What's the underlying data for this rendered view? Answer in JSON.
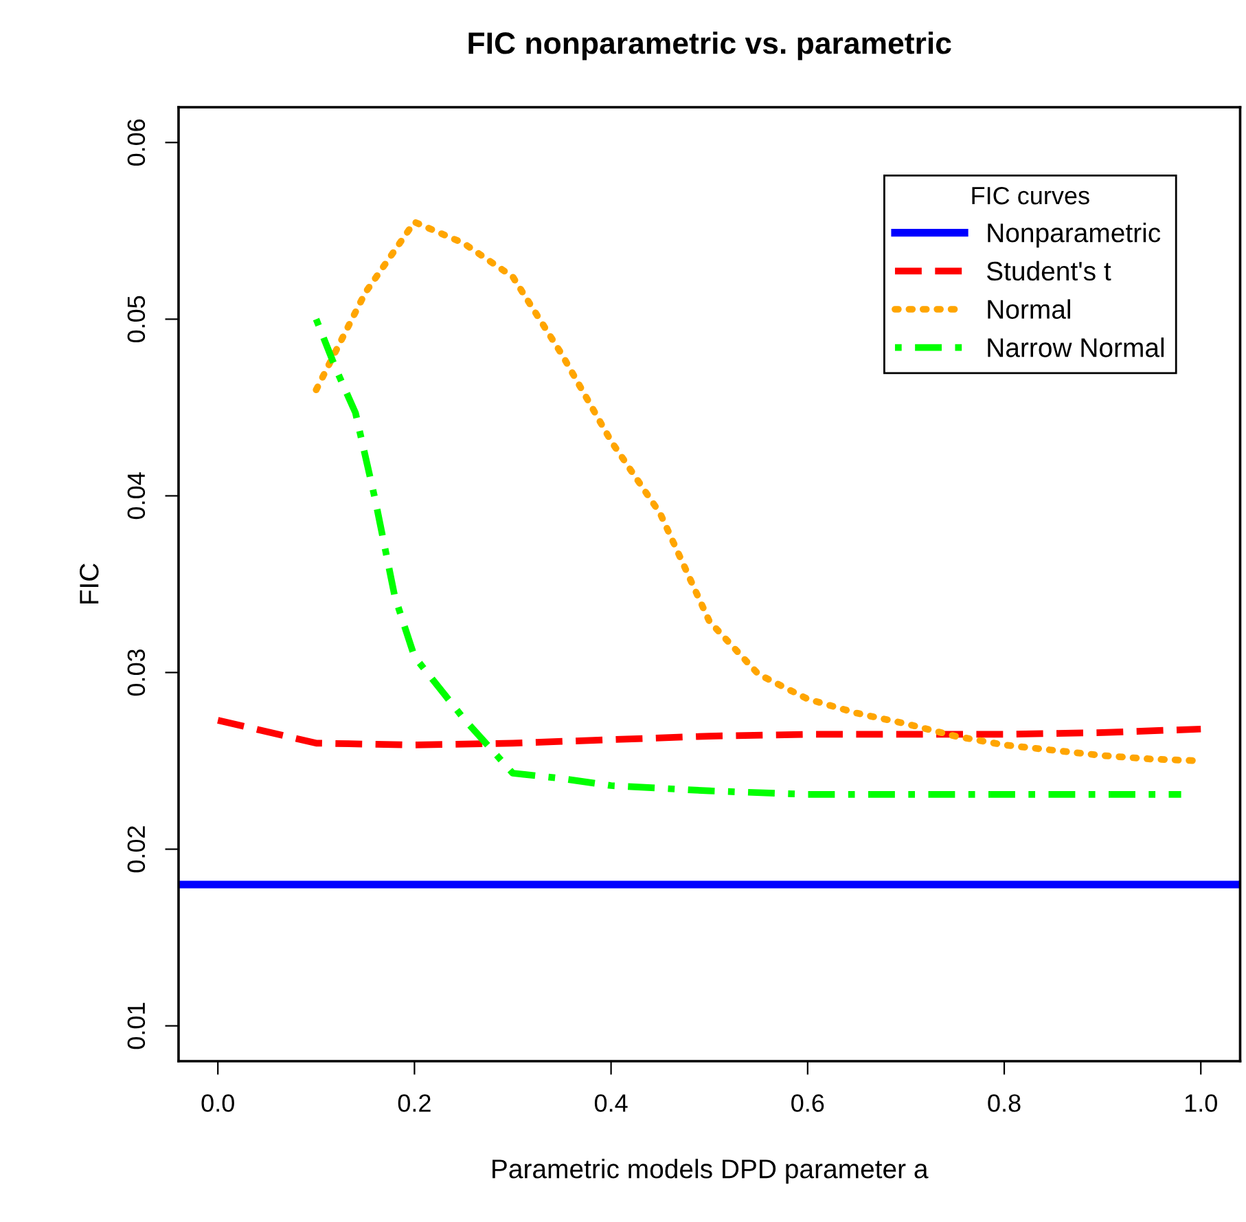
{
  "chart_data": {
    "type": "line",
    "title": "FIC nonparametric vs. parametric",
    "xlabel": "Parametric models DPD parameter a",
    "ylabel": "FIC",
    "legend_title": "FIC curves",
    "series": [
      {
        "name": "Nonparametric",
        "color": "#0000ff",
        "line_style": "solid",
        "x": [
          -0.04,
          1.04
        ],
        "values": [
          0.018,
          0.018
        ]
      },
      {
        "name": "Student's t",
        "color": "#ff0000",
        "line_style": "dashed",
        "x": [
          0,
          0.1,
          0.2,
          0.3,
          0.4,
          0.5,
          0.6,
          0.7,
          0.8,
          0.9,
          1.0
        ],
        "values": [
          0.0273,
          0.026,
          0.0259,
          0.026,
          0.0262,
          0.0264,
          0.0265,
          0.0265,
          0.0265,
          0.0266,
          0.0268
        ]
      },
      {
        "name": "Normal",
        "color": "#ffa500",
        "line_style": "dotted",
        "x": [
          0.1,
          0.15,
          0.2,
          0.25,
          0.3,
          0.35,
          0.4,
          0.45,
          0.5,
          0.55,
          0.6,
          0.65,
          0.7,
          0.75,
          0.8,
          0.85,
          0.9,
          0.95,
          1.0
        ],
        "values": [
          0.046,
          0.0515,
          0.0555,
          0.0543,
          0.0524,
          0.048,
          0.0431,
          0.039,
          0.0329,
          0.0299,
          0.0285,
          0.0277,
          0.0271,
          0.0264,
          0.0259,
          0.0256,
          0.0253,
          0.0251,
          0.025
        ]
      },
      {
        "name": "Narrow Normal",
        "color": "#00ff00",
        "line_style": "dashdot",
        "x": [
          0.1,
          0.12,
          0.14,
          0.16,
          0.18,
          0.2,
          0.25,
          0.3,
          0.35,
          0.4,
          0.5,
          0.6,
          0.7,
          0.8,
          0.9,
          0.98
        ],
        "values": [
          0.05,
          0.0472,
          0.0447,
          0.0398,
          0.0343,
          0.0309,
          0.0274,
          0.0243,
          0.024,
          0.0236,
          0.0233,
          0.0231,
          0.0231,
          0.0231,
          0.0231,
          0.0231
        ]
      }
    ],
    "xlim": [
      -0.04,
      1.04
    ],
    "ylim": [
      0.008,
      0.062
    ],
    "xticks": [
      {
        "value": 0,
        "label": "0.0"
      },
      0.2,
      0.4,
      0.6,
      0.8,
      {
        "value": 1,
        "label": "1.0"
      }
    ],
    "yticks": [
      0.01,
      0.02,
      0.03,
      0.04,
      0.05,
      0.06
    ],
    "grid": false,
    "legend": "top right",
    "marker": "none"
  }
}
